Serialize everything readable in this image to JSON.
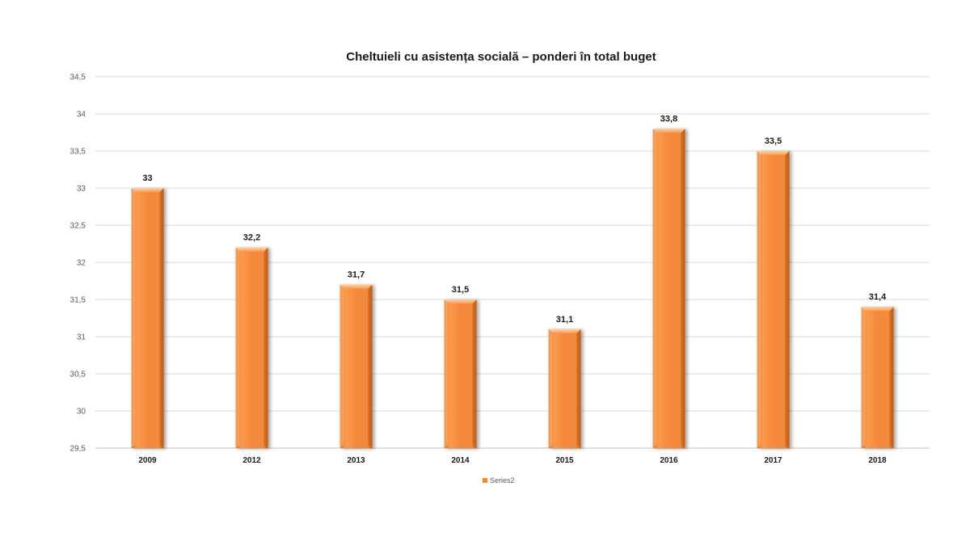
{
  "chart_data": {
    "type": "bar",
    "title": "Cheltuieli cu asistența socială – ponderi în total buget",
    "categories": [
      "2009",
      "2012",
      "2013",
      "2014",
      "2015",
      "2016",
      "2017",
      "2018"
    ],
    "series": [
      {
        "name": "Series2",
        "values": [
          33,
          32.2,
          31.7,
          31.5,
          31.1,
          33.8,
          33.5,
          31.4
        ],
        "color": "#f58a33"
      }
    ],
    "data_labels": [
      "33",
      "32,2",
      "31,7",
      "31,5",
      "31,1",
      "33,8",
      "33,5",
      "31,4"
    ],
    "y_ticks": [
      "29,5",
      "30",
      "30,5",
      "31",
      "31,5",
      "32",
      "32,5",
      "33",
      "33,5",
      "34",
      "34,5"
    ],
    "ylim": [
      29.5,
      34.5
    ],
    "grid": true,
    "legend_position": "bottom"
  }
}
